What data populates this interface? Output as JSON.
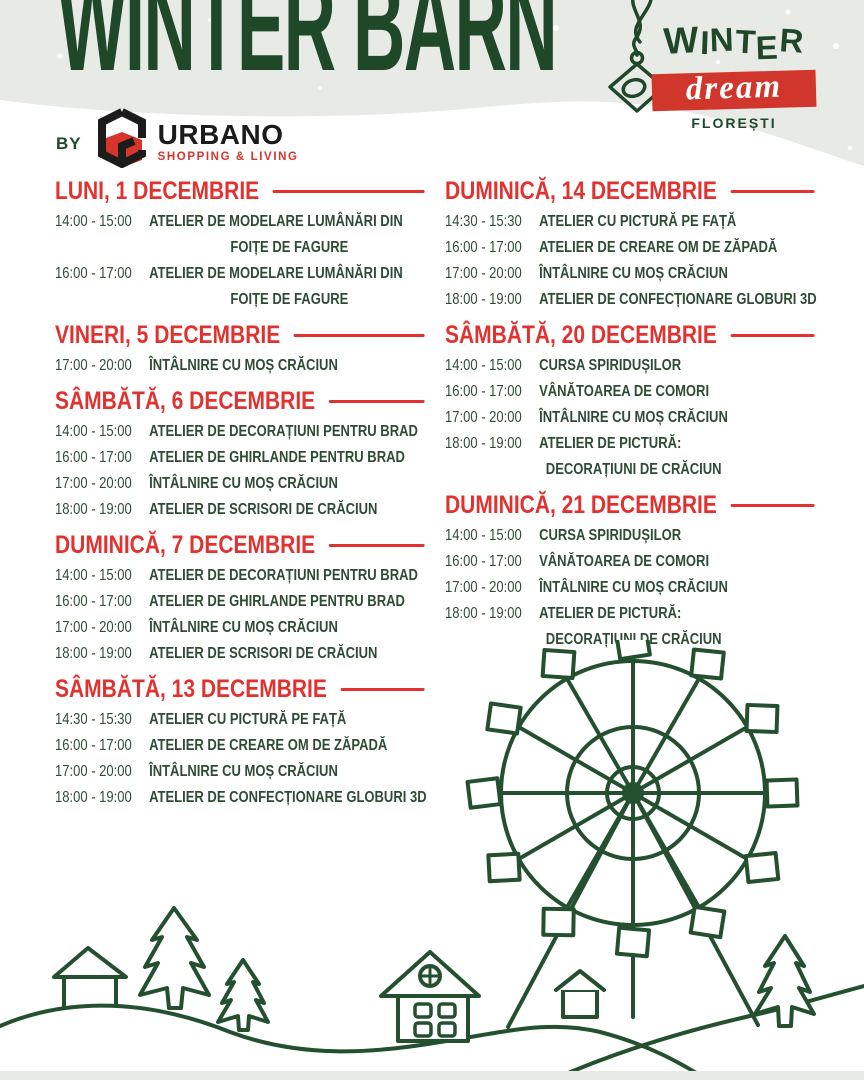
{
  "poster": {
    "title": "WINTER BARN",
    "by_label": "BY",
    "partner_logo": {
      "name": "URBANO",
      "tagline": "SHOPPING & LIVING"
    },
    "event_logo": {
      "word1": "WINTER",
      "word2": "dream",
      "city": "FLOREȘTI"
    },
    "colors": {
      "green": "#1f4829",
      "text-green": "#2e4c34",
      "red": "#e23230",
      "logo-red": "#d0362b",
      "header-bg": "#e8eae6"
    }
  },
  "schedule": {
    "left": [
      {
        "heading": "LUNI, 1 DECEMBRIE",
        "items": [
          {
            "time": "14:00 - 15:00",
            "lines": [
              "ATELIER DE MODELARE LUMÂNĂRI DIN",
              "FOIȚE DE FAGURE"
            ],
            "wrap": "center"
          },
          {
            "time": "16:00 - 17:00",
            "lines": [
              "ATELIER DE MODELARE LUMÂNĂRI DIN",
              "FOIȚE DE FAGURE"
            ],
            "wrap": "center"
          }
        ]
      },
      {
        "heading": "VINERI, 5 DECEMBRIE",
        "items": [
          {
            "time": "17:00 - 20:00",
            "lines": [
              "ÎNTÂLNIRE CU MOȘ CRĂCIUN"
            ]
          }
        ]
      },
      {
        "heading": "SÂMBĂTĂ, 6 DECEMBRIE",
        "items": [
          {
            "time": "14:00 - 15:00",
            "lines": [
              "ATELIER DE DECORAȚIUNI PENTRU BRAD"
            ]
          },
          {
            "time": "16:00 - 17:00",
            "lines": [
              "ATELIER DE GHIRLANDE PENTRU BRAD"
            ]
          },
          {
            "time": "17:00 - 20:00",
            "lines": [
              "ÎNTÂLNIRE CU MOȘ CRĂCIUN"
            ]
          },
          {
            "time": "18:00 - 19:00",
            "lines": [
              "ATELIER DE SCRISORI DE CRĂCIUN"
            ]
          }
        ]
      },
      {
        "heading": "DUMINICĂ, 7 DECEMBRIE",
        "items": [
          {
            "time": "14:00 - 15:00",
            "lines": [
              "ATELIER DE DECORAȚIUNI PENTRU BRAD"
            ]
          },
          {
            "time": "16:00 - 17:00",
            "lines": [
              "ATELIER DE GHIRLANDE PENTRU BRAD"
            ]
          },
          {
            "time": "17:00 - 20:00",
            "lines": [
              "ÎNTÂLNIRE CU MOȘ CRĂCIUN"
            ]
          },
          {
            "time": "18:00 - 19:00",
            "lines": [
              "ATELIER DE SCRISORI DE CRĂCIUN"
            ]
          }
        ]
      },
      {
        "heading": "SÂMBĂTĂ, 13 DECEMBRIE",
        "items": [
          {
            "time": "14:30 - 15:30",
            "lines": [
              "ATELIER CU PICTURĂ PE FAȚĂ"
            ]
          },
          {
            "time": "16:00 - 17:00",
            "lines": [
              "ATELIER DE CREARE OM DE ZĂPADĂ"
            ]
          },
          {
            "time": "17:00 - 20:00",
            "lines": [
              "ÎNTÂLNIRE CU MOȘ CRĂCIUN"
            ]
          },
          {
            "time": "18:00 - 19:00",
            "lines": [
              "ATELIER DE CONFECȚIONARE GLOBURI 3D"
            ]
          }
        ]
      }
    ],
    "right": [
      {
        "heading": "DUMINICĂ, 14 DECEMBRIE",
        "items": [
          {
            "time": "14:30 - 15:30",
            "lines": [
              "ATELIER CU PICTURĂ PE FAȚĂ"
            ]
          },
          {
            "time": "16:00 - 17:00",
            "lines": [
              "ATELIER DE CREARE OM DE ZĂPADĂ"
            ]
          },
          {
            "time": "17:00 - 20:00",
            "lines": [
              "ÎNTÂLNIRE CU MOȘ CRĂCIUN"
            ]
          },
          {
            "time": "18:00 - 19:00",
            "lines": [
              "ATELIER DE CONFECȚIONARE GLOBURI 3D"
            ]
          }
        ]
      },
      {
        "heading": "SÂMBĂTĂ, 20 DECEMBRIE",
        "items": [
          {
            "time": "14:00 - 15:00",
            "lines": [
              "CURSA SPIRIDUȘILOR"
            ]
          },
          {
            "time": "16:00 - 17:00",
            "lines": [
              "VÂNĂTOAREA DE COMORI"
            ]
          },
          {
            "time": "17:00 - 20:00",
            "lines": [
              "ÎNTÂLNIRE CU MOȘ CRĂCIUN"
            ]
          },
          {
            "time": "18:00 - 19:00",
            "lines": [
              "ATELIER DE PICTURĂ:",
              "DECORAȚIUNI DE CRĂCIUN"
            ],
            "wrap": "left"
          }
        ]
      },
      {
        "heading": "DUMINICĂ, 21 DECEMBRIE",
        "items": [
          {
            "time": "14:00 - 15:00",
            "lines": [
              "CURSA SPIRIDUȘILOR"
            ]
          },
          {
            "time": "16:00 - 17:00",
            "lines": [
              "VÂNĂTOAREA DE COMORI"
            ]
          },
          {
            "time": "17:00 - 20:00",
            "lines": [
              "ÎNTÂLNIRE CU MOȘ CRĂCIUN"
            ]
          },
          {
            "time": "18:00 - 19:00",
            "lines": [
              "ATELIER DE PICTURĂ:",
              "DECORAȚIUNI DE CRĂCIUN"
            ],
            "wrap": "left"
          }
        ]
      }
    ]
  }
}
